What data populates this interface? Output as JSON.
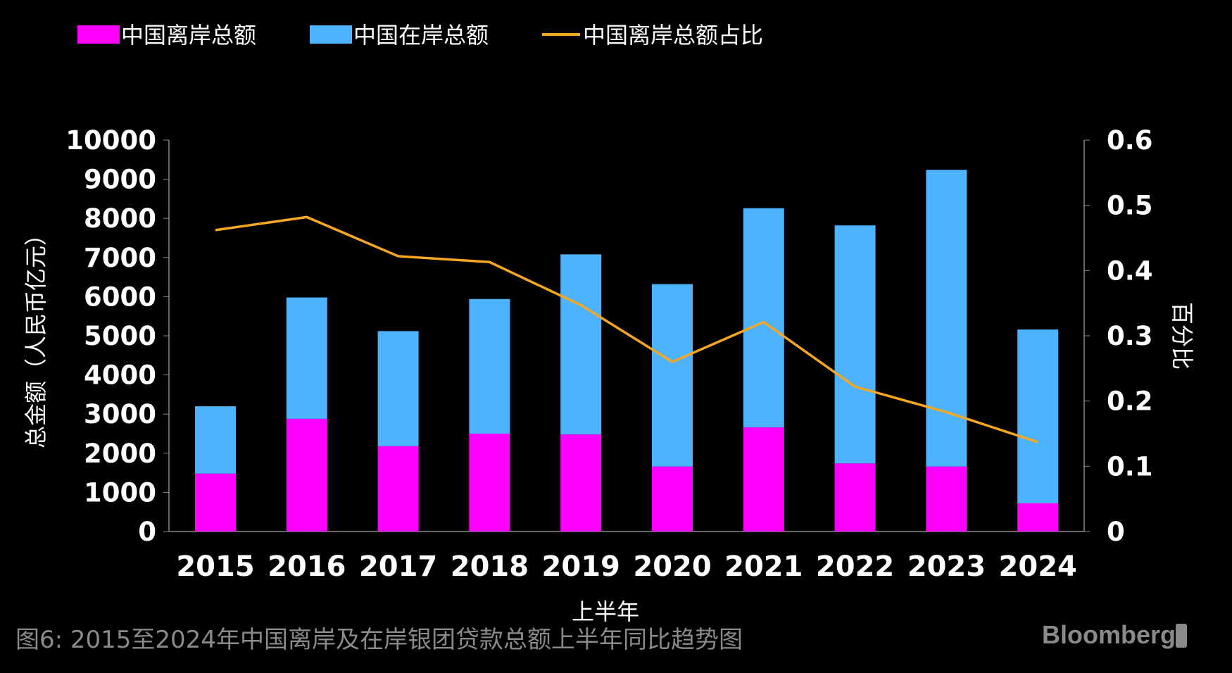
{
  "chart_data": {
    "type": "bar",
    "stacked": true,
    "categories": [
      "2015",
      "2016",
      "2017",
      "2018",
      "2019",
      "2020",
      "2021",
      "2022",
      "2023",
      "2024"
    ],
    "series": [
      {
        "name": "中国离岸总额",
        "type": "bar",
        "axis": "left",
        "color": "#ff00ff",
        "values": [
          1480,
          2880,
          2180,
          2500,
          2480,
          1660,
          2660,
          1740,
          1660,
          720
        ]
      },
      {
        "name": "中国在岸总额",
        "type": "bar",
        "axis": "left",
        "color": "#4db3ff",
        "values": [
          1720,
          3100,
          2940,
          3440,
          4600,
          4660,
          5600,
          6080,
          7580,
          4440
        ]
      },
      {
        "name": "中国离岸总额占比",
        "type": "line",
        "axis": "right",
        "color": "#f5a623",
        "values": [
          0.462,
          0.482,
          0.422,
          0.413,
          0.347,
          0.26,
          0.321,
          0.222,
          0.183,
          0.137
        ]
      }
    ],
    "xlabel": "上半年",
    "ylabel": "总金额（人民币亿元）",
    "y2label": "百分比",
    "ylim": [
      0,
      10000
    ],
    "y2lim": [
      0,
      0.6
    ],
    "yticks": [
      "0",
      "1000",
      "2000",
      "3000",
      "4000",
      "5000",
      "6000",
      "7000",
      "8000",
      "9000",
      "10000"
    ],
    "y2ticks": [
      "0",
      "0.1",
      "0.2",
      "0.3",
      "0.4",
      "0.5",
      "0.6"
    ],
    "grid": false,
    "legend": "top-left"
  },
  "caption": "图6: 2015至2024年中国离岸及在岸银团贷款总额上半年同比趋势图",
  "logo": "Bloomberg"
}
